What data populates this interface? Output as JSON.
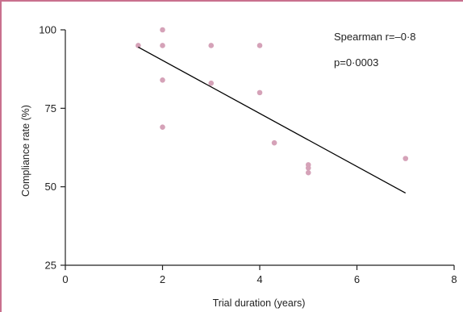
{
  "chart_data": {
    "type": "scatter",
    "title": "",
    "xlabel": "Trial duration (years)",
    "ylabel": "Compliance rate (%)",
    "xlim": [
      0,
      8
    ],
    "ylim": [
      25,
      100
    ],
    "xticks": [
      0,
      2,
      4,
      6,
      8
    ],
    "yticks": [
      25,
      50,
      75,
      100
    ],
    "xtick_labels": [
      "0",
      "2",
      "4",
      "6",
      "8"
    ],
    "ytick_labels": [
      "25",
      "50",
      "75",
      "100"
    ],
    "grid": false,
    "points": [
      {
        "x": 1.5,
        "y": 95
      },
      {
        "x": 2,
        "y": 100
      },
      {
        "x": 2,
        "y": 95
      },
      {
        "x": 2,
        "y": 84
      },
      {
        "x": 2,
        "y": 69
      },
      {
        "x": 3,
        "y": 95
      },
      {
        "x": 3,
        "y": 83
      },
      {
        "x": 4,
        "y": 95
      },
      {
        "x": 4,
        "y": 80
      },
      {
        "x": 4.3,
        "y": 64
      },
      {
        "x": 5,
        "y": 57
      },
      {
        "x": 5,
        "y": 56
      },
      {
        "x": 5,
        "y": 54.5
      },
      {
        "x": 7,
        "y": 59
      }
    ],
    "trendline": {
      "x": [
        1.5,
        7
      ],
      "y": [
        94.5,
        48
      ]
    },
    "annotations": [
      "Spearman r=–0·8",
      "p=0·0003"
    ],
    "colors": {
      "points": "#d5a2b8",
      "line": "#000000",
      "frame": "#c9708e",
      "axis": "#222222"
    }
  }
}
